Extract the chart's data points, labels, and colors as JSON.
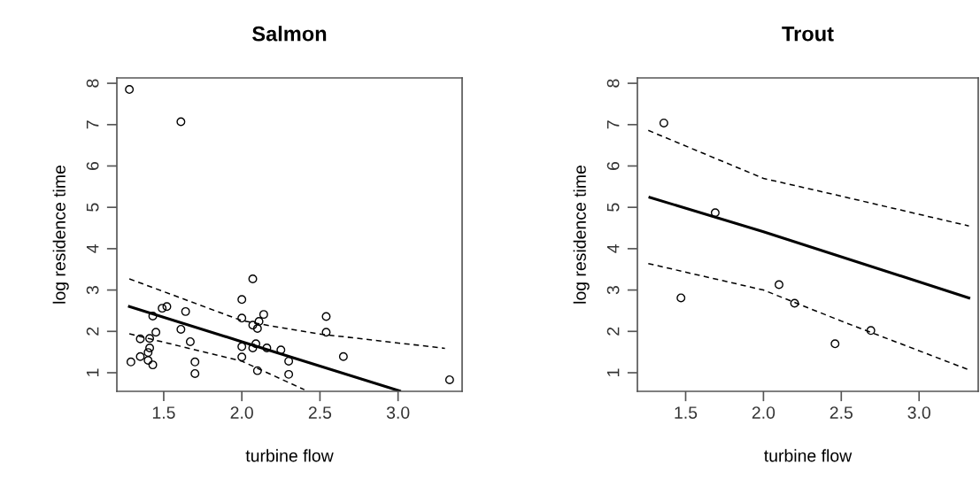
{
  "chart_data": [
    {
      "type": "scatter",
      "title": "Salmon",
      "xlabel": "turbine flow",
      "ylabel": "log residence time",
      "xlim": [
        1.2,
        3.41
      ],
      "ylim": [
        0.55,
        8.13
      ],
      "xticks": [
        {
          "value": 1.5,
          "label": "1.5"
        },
        {
          "value": 2.0,
          "label": "2.0"
        },
        {
          "value": 2.5,
          "label": "2.5"
        },
        {
          "value": 3.0,
          "label": "3.0"
        }
      ],
      "yticks": [
        1,
        2,
        3,
        4,
        5,
        6,
        7,
        8
      ],
      "series": [
        {
          "marker": "circle",
          "color": "#000000",
          "x": [
            1.28,
            1.61,
            2.07,
            2.0,
            2.0,
            2.14,
            2.11,
            2.07,
            2.1,
            2.09,
            2.07,
            2.0,
            2.0,
            2.16,
            2.25,
            2.3,
            2.1,
            2.3,
            1.7,
            1.7,
            1.67,
            1.61,
            1.64,
            1.52,
            1.49,
            1.43,
            1.45,
            1.41,
            1.35,
            1.35,
            1.29,
            1.41,
            1.4,
            1.4,
            1.43,
            2.54,
            2.54,
            2.65,
            3.33
          ],
          "values": [
            7.85,
            7.07,
            3.27,
            2.77,
            2.32,
            2.41,
            2.24,
            2.15,
            2.07,
            1.7,
            1.6,
            1.63,
            1.38,
            1.6,
            1.55,
            1.28,
            1.05,
            0.96,
            0.98,
            1.26,
            1.75,
            2.05,
            2.48,
            2.6,
            2.56,
            2.37,
            1.98,
            1.83,
            1.82,
            1.39,
            1.26,
            1.6,
            1.49,
            1.3,
            1.19,
            2.36,
            1.98,
            1.39,
            0.83
          ]
        },
        {
          "type": "line",
          "line_style": "solid",
          "color": "#000000",
          "x": [
            1.28,
            2.0,
            3.01
          ],
          "values": [
            2.6,
            1.75,
            0.56
          ]
        },
        {
          "type": "line",
          "line_style": "dashed",
          "color": "#000000",
          "x": [
            1.28,
            2.0,
            2.25,
            2.49,
            3.3
          ],
          "values": [
            3.27,
            2.26,
            2.09,
            1.94,
            1.59
          ]
        },
        {
          "type": "line",
          "line_style": "dashed",
          "color": "#000000",
          "x": [
            1.28,
            2.0,
            2.4
          ],
          "values": [
            1.94,
            1.28,
            0.59
          ]
        }
      ]
    },
    {
      "type": "scatter",
      "title": "Trout",
      "xlabel": "turbine flow",
      "ylabel": "log residence time",
      "xlim": [
        1.19,
        3.38
      ],
      "ylim": [
        0.55,
        8.13
      ],
      "xticks": [
        {
          "value": 1.5,
          "label": "1.5"
        },
        {
          "value": 2.0,
          "label": "2.0"
        },
        {
          "value": 2.5,
          "label": "2.5"
        },
        {
          "value": 3.0,
          "label": "3.0"
        }
      ],
      "yticks": [
        1,
        2,
        3,
        4,
        5,
        6,
        7,
        8
      ],
      "series": [
        {
          "marker": "circle",
          "color": "#000000",
          "x": [
            1.36,
            1.47,
            1.69,
            2.1,
            2.2,
            2.46,
            2.69
          ],
          "values": [
            7.04,
            2.81,
            4.87,
            3.13,
            2.68,
            1.7,
            2.02
          ]
        },
        {
          "type": "line",
          "line_style": "solid",
          "color": "#000000",
          "x": [
            1.27,
            2.0,
            3.32
          ],
          "values": [
            5.24,
            4.41,
            2.81
          ]
        },
        {
          "type": "line",
          "line_style": "dashed",
          "color": "#000000",
          "x": [
            1.26,
            2.0,
            2.5,
            3.32
          ],
          "values": [
            6.86,
            5.7,
            5.27,
            4.55
          ]
        },
        {
          "type": "line",
          "line_style": "dashed",
          "color": "#000000",
          "x": [
            1.26,
            2.0,
            2.5,
            3.32
          ],
          "values": [
            3.64,
            3.0,
            2.25,
            1.07
          ]
        }
      ]
    }
  ]
}
